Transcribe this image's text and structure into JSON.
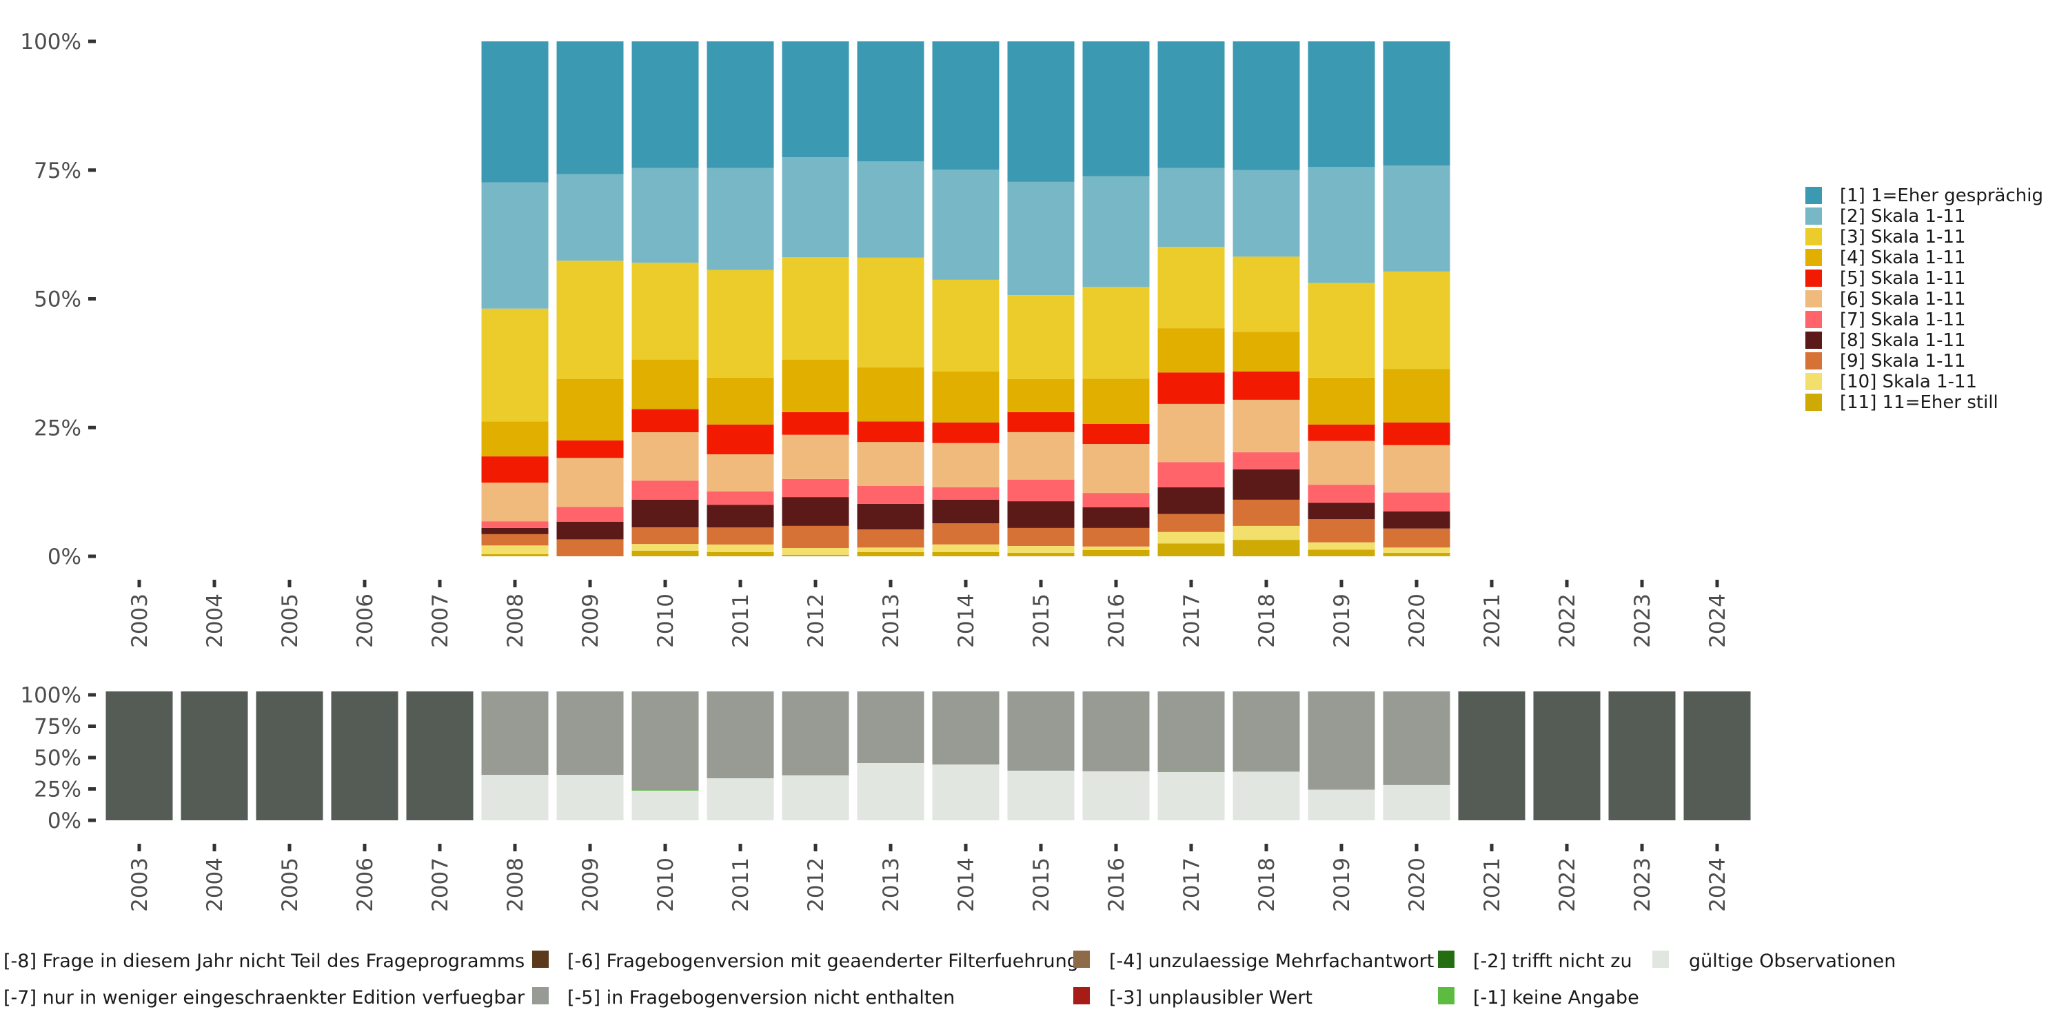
{
  "chart_data": [
    {
      "type": "bar",
      "stacked": "percent",
      "title": "",
      "xlabel": "",
      "ylabel": "",
      "ylim": [
        0,
        100
      ],
      "y_ticks": [
        "0%",
        "25%",
        "50%",
        "75%",
        "100%"
      ],
      "grid": false,
      "legend_position": "right",
      "categories": [
        "2003",
        "2004",
        "2005",
        "2006",
        "2007",
        "2008",
        "2009",
        "2010",
        "2011",
        "2012",
        "2013",
        "2014",
        "2015",
        "2016",
        "2017",
        "2018",
        "2019",
        "2020",
        "2021",
        "2022",
        "2023",
        "2024"
      ],
      "series": [
        {
          "name": "[1] 1=Eher gesprächig",
          "color": "#3C99B2",
          "values": [
            null,
            null,
            null,
            null,
            null,
            27.4,
            25.8,
            24.6,
            24.6,
            22.5,
            23.3,
            24.9,
            27.3,
            26.2,
            24.6,
            25.0,
            24.4,
            24.1,
            null,
            null,
            null,
            null
          ]
        },
        {
          "name": "[2] Skala 1-11",
          "color": "#78B7C5",
          "values": [
            null,
            null,
            null,
            null,
            null,
            24.5,
            16.8,
            18.4,
            19.8,
            19.4,
            18.7,
            21.4,
            22.0,
            21.5,
            15.3,
            16.8,
            22.5,
            20.6,
            null,
            null,
            null,
            null
          ]
        },
        {
          "name": "[3] Skala 1-11",
          "color": "#EBCC2A",
          "values": [
            null,
            null,
            null,
            null,
            null,
            21.9,
            23.0,
            18.8,
            20.9,
            19.9,
            21.3,
            17.8,
            16.3,
            17.8,
            15.8,
            14.6,
            18.4,
            18.9,
            null,
            null,
            null,
            null
          ]
        },
        {
          "name": "[4] Skala 1-11",
          "color": "#E1AF00",
          "values": [
            null,
            null,
            null,
            null,
            null,
            6.8,
            11.9,
            9.6,
            9.1,
            10.2,
            10.5,
            9.9,
            6.4,
            8.8,
            8.6,
            7.7,
            9.1,
            10.4,
            null,
            null,
            null,
            null
          ]
        },
        {
          "name": "[5] Skala 1-11",
          "color": "#F21A00",
          "values": [
            null,
            null,
            null,
            null,
            null,
            5.1,
            3.4,
            4.5,
            5.8,
            4.4,
            4.0,
            4.0,
            3.9,
            3.9,
            6.1,
            5.5,
            3.2,
            4.4,
            null,
            null,
            null,
            null
          ]
        },
        {
          "name": "[6] Skala 1-11",
          "color": "#F0BA7D",
          "values": [
            null,
            null,
            null,
            null,
            null,
            7.5,
            9.5,
            9.4,
            7.2,
            8.6,
            8.5,
            8.6,
            9.2,
            9.5,
            11.3,
            10.2,
            8.5,
            9.2,
            null,
            null,
            null,
            null
          ]
        },
        {
          "name": "[7] Skala 1-11",
          "color": "#FE646A",
          "values": [
            null,
            null,
            null,
            null,
            null,
            1.3,
            2.9,
            3.7,
            2.6,
            3.5,
            3.5,
            2.4,
            4.2,
            2.8,
            4.9,
            3.3,
            3.5,
            3.7,
            null,
            null,
            null,
            null
          ]
        },
        {
          "name": "[8] Skala 1-11",
          "color": "#5B1A18",
          "values": [
            null,
            null,
            null,
            null,
            null,
            1.2,
            3.4,
            5.4,
            4.4,
            5.6,
            5.0,
            4.6,
            5.2,
            4.0,
            5.2,
            5.9,
            3.2,
            3.3,
            null,
            null,
            null,
            null
          ]
        },
        {
          "name": "[9] Skala 1-11",
          "color": "#D67236",
          "values": [
            null,
            null,
            null,
            null,
            null,
            2.2,
            3.3,
            3.2,
            3.3,
            4.3,
            3.5,
            4.1,
            3.5,
            3.6,
            3.5,
            5.1,
            4.5,
            3.7,
            null,
            null,
            null,
            null
          ]
        },
        {
          "name": "[10] Skala 1-11",
          "color": "#F3DF6C",
          "values": [
            null,
            null,
            null,
            null,
            null,
            1.7,
            0.0,
            1.3,
            1.5,
            1.3,
            0.9,
            1.5,
            1.3,
            0.7,
            2.2,
            2.7,
            1.4,
            1.0,
            null,
            null,
            null,
            null
          ]
        },
        {
          "name": "[11] 11=Eher still",
          "color": "#CFAA05",
          "values": [
            null,
            null,
            null,
            null,
            null,
            0.4,
            0.0,
            1.1,
            0.8,
            0.3,
            0.8,
            0.8,
            0.7,
            1.2,
            2.5,
            3.2,
            1.3,
            0.7,
            null,
            null,
            null,
            null
          ]
        }
      ]
    },
    {
      "type": "bar",
      "stacked": "percent",
      "title": "",
      "xlabel": "",
      "ylabel": "",
      "ylim": [
        0,
        100
      ],
      "y_ticks": [
        "0%",
        "25%",
        "50%",
        "75%",
        "100%"
      ],
      "grid": false,
      "legend_position": "bottom",
      "categories": [
        "2003",
        "2004",
        "2005",
        "2006",
        "2007",
        "2008",
        "2009",
        "2010",
        "2011",
        "2012",
        "2013",
        "2014",
        "2015",
        "2016",
        "2017",
        "2018",
        "2019",
        "2020",
        "2021",
        "2022",
        "2023",
        "2024"
      ],
      "series": [
        {
          "name": "gültige Observationen",
          "color": "#E1E6E0",
          "values": [
            0,
            0,
            0,
            0,
            0,
            35.3,
            35.3,
            23.0,
            32.6,
            35.0,
            44.4,
            43.3,
            38.5,
            38.0,
            37.5,
            37.8,
            23.8,
            27.3,
            0,
            0,
            0,
            0
          ]
        },
        {
          "name": "[-1] keine Angabe",
          "color": "#5BBC3F",
          "values": [
            0,
            0,
            0,
            0,
            0,
            0,
            0,
            0.5,
            0,
            0.3,
            0,
            0,
            0,
            0,
            0.8,
            0.3,
            0.3,
            0,
            0,
            0,
            0,
            0
          ]
        },
        {
          "name": "[-5] in Fragebogenversion nicht enthalten",
          "color": "#979B94",
          "values": [
            0,
            0,
            0,
            0,
            0,
            64.7,
            64.7,
            76.5,
            67.4,
            64.7,
            55.6,
            56.7,
            61.5,
            62.0,
            61.7,
            61.9,
            75.9,
            72.7,
            0,
            0,
            0,
            0
          ]
        },
        {
          "name": "[-8] Frage in diesem Jahr nicht Teil des Frageprogramms",
          "color": "#555B55",
          "values": [
            100,
            100,
            100,
            100,
            100,
            0,
            0,
            0,
            0,
            0,
            0,
            0,
            0,
            0,
            0,
            0,
            0,
            0,
            100,
            100,
            100,
            100
          ]
        }
      ]
    }
  ],
  "bottom_legend": [
    {
      "label": "[-8] Frage in diesem Jahr nicht Teil des Frageprogramms",
      "color": "#555B55"
    },
    {
      "label": "[-7] nur in weniger eingeschraenkter Edition verfuegbar",
      "color": "#979B94"
    },
    {
      "label": "[-6] Fragebogenversion mit geaenderter Filterfuehrung",
      "color": "#5A3A1A"
    },
    {
      "label": "[-5] in Fragebogenversion nicht enthalten",
      "color": "#979B94"
    },
    {
      "label": "[-4] unzulaessige Mehrfachantwort",
      "color": "#8D6A48"
    },
    {
      "label": "[-3] unplausibler Wert",
      "color": "#A81C18"
    },
    {
      "label": "[-2] trifft nicht zu",
      "color": "#246E12"
    },
    {
      "label": "[-1] keine Angabe",
      "color": "#5BBC3F"
    },
    {
      "label": "gültige Observationen",
      "color": "#E1E6E0"
    }
  ]
}
